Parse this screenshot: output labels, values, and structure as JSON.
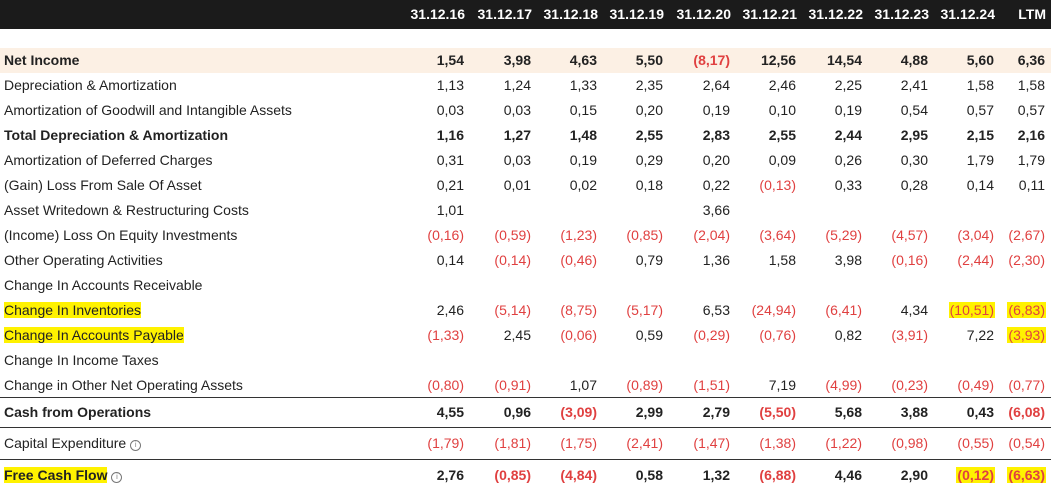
{
  "columns": [
    "31.12.16",
    "31.12.17",
    "31.12.18",
    "31.12.19",
    "31.12.20",
    "31.12.21",
    "31.12.22",
    "31.12.23",
    "31.12.24",
    "LTM"
  ],
  "rows": [
    {
      "label": "Net Income",
      "bold": true,
      "tint": true,
      "values": [
        "1,54",
        "3,98",
        "4,63",
        "5,50",
        "(8,17)",
        "12,56",
        "14,54",
        "4,88",
        "5,60",
        "6,36"
      ]
    },
    {
      "label": "Depreciation & Amortization",
      "values": [
        "1,13",
        "1,24",
        "1,33",
        "2,35",
        "2,64",
        "2,46",
        "2,25",
        "2,41",
        "1,58",
        "1,58"
      ]
    },
    {
      "label": "Amortization of Goodwill and Intangible Assets",
      "values": [
        "0,03",
        "0,03",
        "0,15",
        "0,20",
        "0,19",
        "0,10",
        "0,19",
        "0,54",
        "0,57",
        "0,57"
      ]
    },
    {
      "label": "Total Depreciation & Amortization",
      "bold": true,
      "values": [
        "1,16",
        "1,27",
        "1,48",
        "2,55",
        "2,83",
        "2,55",
        "2,44",
        "2,95",
        "2,15",
        "2,16"
      ]
    },
    {
      "label": "Amortization of Deferred Charges",
      "values": [
        "0,31",
        "0,03",
        "0,19",
        "0,29",
        "0,20",
        "0,09",
        "0,26",
        "0,30",
        "1,79",
        "1,79"
      ]
    },
    {
      "label": "(Gain) Loss From Sale Of Asset",
      "values": [
        "0,21",
        "0,01",
        "0,02",
        "0,18",
        "0,22",
        "(0,13)",
        "0,33",
        "0,28",
        "0,14",
        "0,11"
      ]
    },
    {
      "label": "Asset Writedown & Restructuring Costs",
      "values": [
        "1,01",
        "",
        "",
        "",
        "3,66",
        "",
        "",
        "",
        "",
        ""
      ]
    },
    {
      "label": "(Income) Loss On Equity Investments",
      "values": [
        "(0,16)",
        "(0,59)",
        "(1,23)",
        "(0,85)",
        "(2,04)",
        "(3,64)",
        "(5,29)",
        "(4,57)",
        "(3,04)",
        "(2,67)"
      ]
    },
    {
      "label": "Other Operating Activities",
      "values": [
        "0,14",
        "(0,14)",
        "(0,46)",
        "0,79",
        "1,36",
        "1,58",
        "3,98",
        "(0,16)",
        "(2,44)",
        "(2,30)"
      ]
    },
    {
      "label": "Change In Accounts Receivable",
      "values": [
        "",
        "",
        "",
        "",
        "",
        "",
        "",
        "",
        "",
        ""
      ]
    },
    {
      "label": "Change In Inventories",
      "label_hl": true,
      "hl_from": 8,
      "values": [
        "2,46",
        "(5,14)",
        "(8,75)",
        "(5,17)",
        "6,53",
        "(24,94)",
        "(6,41)",
        "4,34",
        "(10,51)",
        "(6,83)"
      ]
    },
    {
      "label": "Change In Accounts Payable",
      "label_hl": true,
      "hl_from": 9,
      "values": [
        "(1,33)",
        "2,45",
        "(0,06)",
        "0,59",
        "(0,29)",
        "(0,76)",
        "0,82",
        "(3,91)",
        "7,22",
        "(3,93)"
      ]
    },
    {
      "label": "Change In Income Taxes",
      "values": [
        "",
        "",
        "",
        "",
        "",
        "",
        "",
        "",
        "",
        ""
      ]
    },
    {
      "label": "Change in Other Net Operating Assets",
      "values": [
        "(0,80)",
        "(0,91)",
        "1,07",
        "(0,89)",
        "(1,51)",
        "7,19",
        "(4,99)",
        "(0,23)",
        "(0,49)",
        "(0,77)"
      ]
    },
    {
      "label": "Cash from Operations",
      "bold": true,
      "sep": true,
      "values": [
        "4,55",
        "0,96",
        "(3,09)",
        "2,99",
        "2,79",
        "(5,50)",
        "5,68",
        "3,88",
        "0,43",
        "(6,08)"
      ]
    },
    {
      "label": "Capital Expenditure",
      "info": true,
      "sep": true,
      "values": [
        "(1,79)",
        "(1,81)",
        "(1,75)",
        "(2,41)",
        "(1,47)",
        "(1,38)",
        "(1,22)",
        "(0,98)",
        "(0,55)",
        "(0,54)"
      ]
    },
    {
      "label": "Free Cash Flow",
      "bold": true,
      "info": true,
      "label_hl": true,
      "hl_from": 8,
      "sep": true,
      "values": [
        "2,76",
        "(0,85)",
        "(4,84)",
        "0,58",
        "1,32",
        "(6,88)",
        "4,46",
        "2,90",
        "(0,12)",
        "(6,63)"
      ]
    }
  ]
}
